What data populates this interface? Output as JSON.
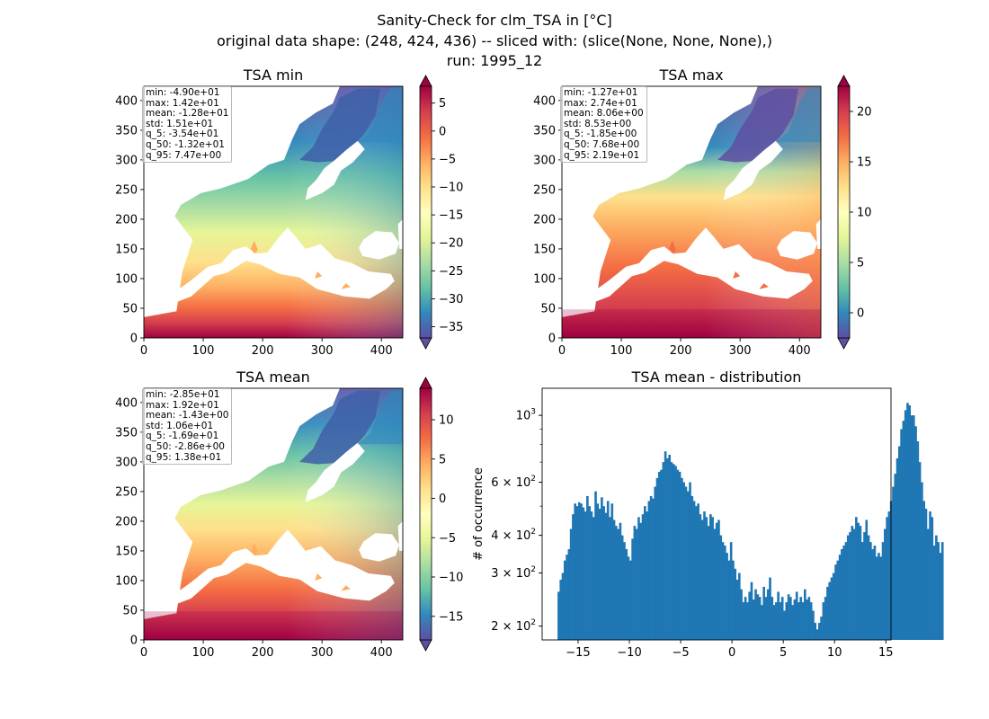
{
  "title": {
    "line1": "Sanity-Check for clm_TSA in [°C]",
    "line2": "original data shape: (248, 424, 436) -- sliced with: (slice(None, None, None),)",
    "line3": "run: 1995_12"
  },
  "colors": {
    "histogram": "#1f77b4",
    "spectral": [
      "#5e4fa2",
      "#3288bd",
      "#66c2a5",
      "#abdda4",
      "#e6f598",
      "#ffffbf",
      "#fee08b",
      "#fdae61",
      "#f46d43",
      "#d53e4f",
      "#9e0142"
    ]
  },
  "chart_data": [
    {
      "type": "heatmap",
      "title": "TSA min",
      "x_ticks": [
        0,
        100,
        200,
        300,
        400
      ],
      "y_ticks": [
        0,
        50,
        100,
        150,
        200,
        250,
        300,
        350,
        400
      ],
      "xlim": [
        0,
        436
      ],
      "ylim": [
        0,
        424
      ],
      "colorbar": {
        "vmin": -37,
        "vmax": 8,
        "ticks": [
          5,
          0,
          -5,
          -10,
          -15,
          -20,
          -25,
          -30,
          -35
        ],
        "cmap": "Spectral_r",
        "extend": "both"
      },
      "stats": [
        "min: -4.90e+01",
        "max: 1.42e+01",
        "mean: -1.28e+01",
        "std: 1.51e+01",
        "q_5: -3.54e+01",
        "q_50: -1.32e+01",
        "q_95: 7.47e+00"
      ]
    },
    {
      "type": "heatmap",
      "title": "TSA max",
      "x_ticks": [
        0,
        100,
        200,
        300,
        400
      ],
      "y_ticks": [
        0,
        50,
        100,
        150,
        200,
        250,
        300,
        350,
        400
      ],
      "xlim": [
        0,
        436
      ],
      "ylim": [
        0,
        424
      ],
      "colorbar": {
        "vmin": -2.5,
        "vmax": 22.5,
        "ticks": [
          20,
          15,
          10,
          5,
          0
        ],
        "cmap": "Spectral_r",
        "extend": "both"
      },
      "stats": [
        "min: -1.27e+01",
        "max: 2.74e+01",
        "mean: 8.06e+00",
        "std: 8.53e+00",
        "q_5: -1.85e+00",
        "q_50: 7.68e+00",
        "q_95: 2.19e+01"
      ]
    },
    {
      "type": "heatmap",
      "title": "TSA mean",
      "x_ticks": [
        0,
        100,
        200,
        300,
        400
      ],
      "y_ticks": [
        0,
        50,
        100,
        150,
        200,
        250,
        300,
        350,
        400
      ],
      "xlim": [
        0,
        436
      ],
      "ylim": [
        0,
        424
      ],
      "colorbar": {
        "vmin": -18,
        "vmax": 14,
        "ticks": [
          10,
          5,
          0,
          -5,
          -10,
          -15
        ],
        "cmap": "Spectral_r",
        "extend": "both"
      },
      "stats": [
        "min: -2.85e+01",
        "max: 1.92e+01",
        "mean: -1.43e+00",
        "std: 1.06e+01",
        "q_5: -1.69e+01",
        "q_50: -2.86e+00",
        "q_95: 1.38e+01"
      ]
    },
    {
      "type": "bar",
      "title": "TSA mean - distribution",
      "ylabel": "# of occurrence",
      "x_ticks": [
        -15,
        -10,
        -5,
        0,
        5,
        10,
        15
      ],
      "xlim": [
        -18.5,
        15.5
      ],
      "y_scale": "log",
      "ylim": [
        180,
        1230
      ],
      "y_ticks": [
        {
          "value": 200,
          "label": "2 × 10²"
        },
        {
          "value": 300,
          "label": "3 × 10²"
        },
        {
          "value": 400,
          "label": "4 × 10²"
        },
        {
          "value": 600,
          "label": "6 × 10²"
        },
        {
          "value": 1000,
          "label": "10³"
        }
      ],
      "bin_start": -17.0,
      "bin_width": 0.2,
      "values": [
        260,
        285,
        300,
        330,
        345,
        360,
        420,
        470,
        510,
        500,
        515,
        510,
        495,
        480,
        540,
        500,
        480,
        460,
        560,
        510,
        490,
        535,
        500,
        475,
        520,
        460,
        510,
        450,
        430,
        420,
        440,
        400,
        380,
        360,
        340,
        330,
        390,
        430,
        420,
        460,
        440,
        470,
        500,
        480,
        520,
        540,
        530,
        580,
        620,
        650,
        660,
        700,
        760,
        720,
        740,
        700,
        690,
        680,
        660,
        650,
        620,
        600,
        580,
        560,
        600,
        540,
        520,
        500,
        510,
        470,
        450,
        480,
        460,
        430,
        470,
        460,
        420,
        440,
        450,
        400,
        380,
        370,
        350,
        330,
        380,
        330,
        310,
        285,
        300,
        265,
        240,
        250,
        240,
        260,
        280,
        245,
        265,
        255,
        250,
        235,
        270,
        250,
        265,
        290,
        250,
        235,
        240,
        260,
        240,
        250,
        225,
        240,
        255,
        250,
        235,
        245,
        260,
        240,
        250,
        240,
        265,
        245,
        250,
        240,
        225,
        205,
        195,
        205,
        215,
        240,
        250,
        270,
        280,
        290,
        300,
        320,
        330,
        345,
        360,
        370,
        380,
        400,
        410,
        430,
        420,
        460,
        440,
        430,
        380,
        410,
        450,
        400,
        380,
        360,
        370,
        340,
        350,
        340,
        380,
        420,
        460,
        480,
        520,
        580,
        640,
        720,
        790,
        900,
        960,
        1040,
        1100,
        1080,
        1000,
        1000,
        920,
        820,
        700,
        600,
        520,
        490,
        420,
        480,
        460,
        370,
        400,
        380,
        350,
        380
      ]
    }
  ]
}
